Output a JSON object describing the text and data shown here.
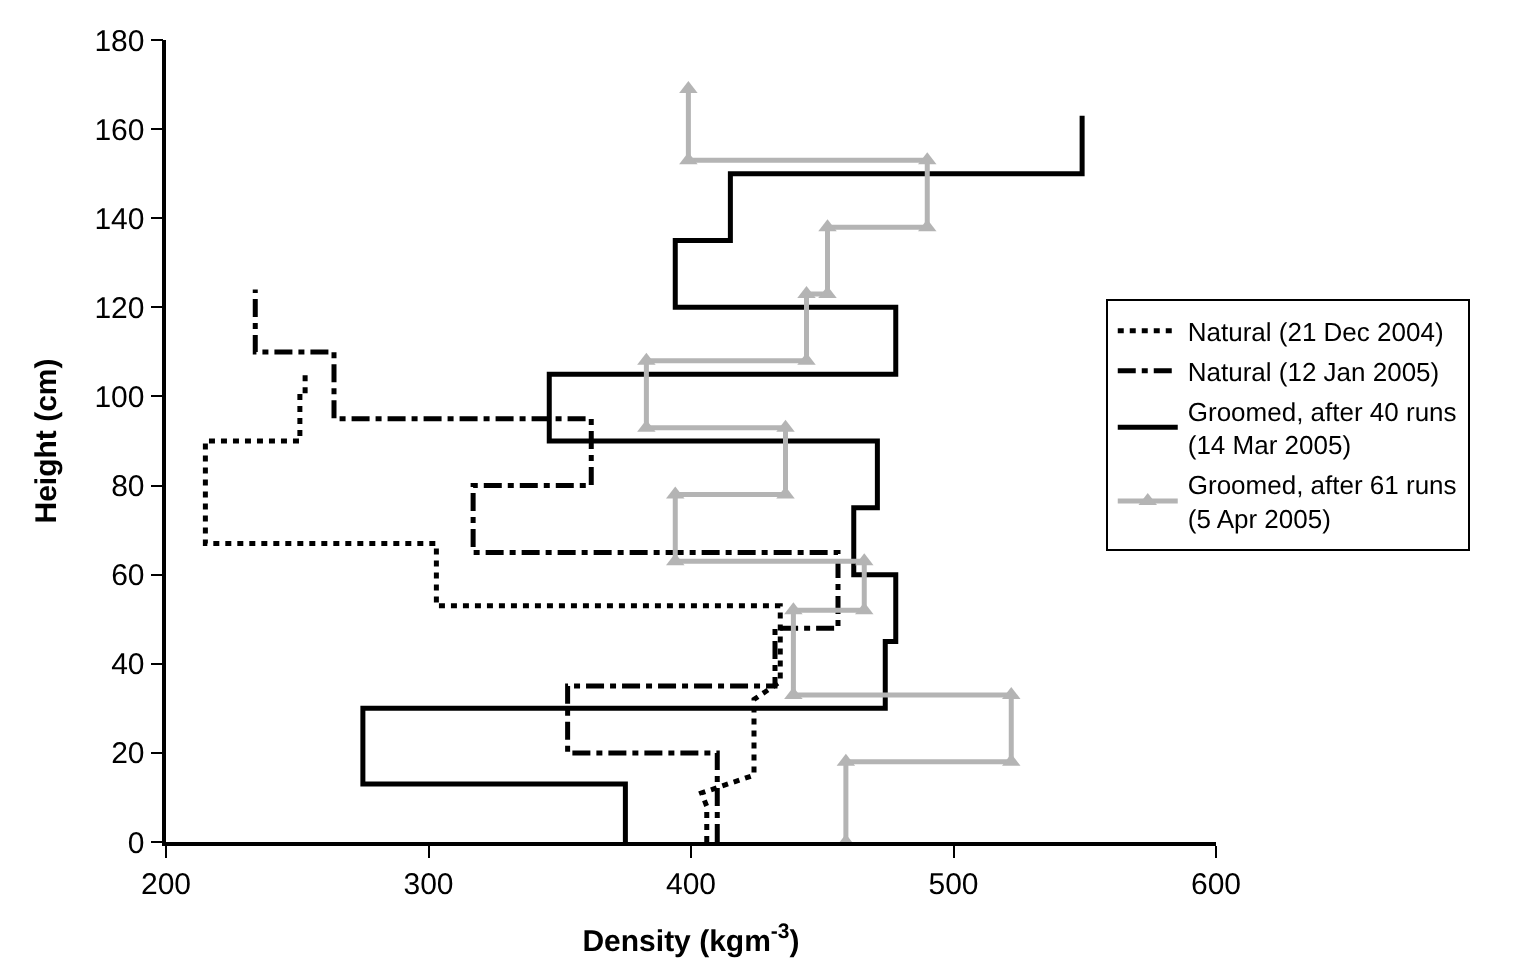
{
  "chart_data": {
    "type": "line",
    "xlabel": "Density (kgm$^{-3}$)",
    "ylabel": "Height (cm)",
    "xlim": [
      200,
      600
    ],
    "xticks": [
      200,
      300,
      400,
      500,
      600
    ],
    "ylim": [
      0,
      180
    ],
    "yticks": [
      0,
      20,
      40,
      60,
      80,
      100,
      120,
      140,
      160,
      180
    ],
    "legend": "right",
    "series": [
      {
        "name": "Natural (21 Dec 2004)",
        "color": "#000000",
        "line_style": "dotted",
        "marker": "none",
        "x": [
          406,
          406,
          404,
          424,
          424,
          434,
          434,
          303,
          303,
          215,
          215,
          251,
          251,
          253,
          253
        ],
        "values": [
          0,
          8,
          11,
          15,
          32,
          36,
          53,
          53,
          67,
          67,
          90,
          90,
          100,
          100,
          105
        ]
      },
      {
        "name": "Natural (12 Jan 2005)",
        "color": "#000000",
        "line_style": "dashdot",
        "marker": "none",
        "x": [
          410,
          410,
          353,
          353,
          432,
          432,
          456,
          456,
          317,
          317,
          362,
          362,
          264,
          264,
          234,
          234
        ],
        "values": [
          0,
          20,
          20,
          35,
          35,
          48,
          48,
          65,
          65,
          80,
          80,
          95,
          95,
          110,
          110,
          124
        ]
      },
      {
        "name": "Groomed, after 40 runs (14 Mar 2005)",
        "color": "#000000",
        "line_style": "solid",
        "marker": "none",
        "x": [
          375,
          375,
          275,
          275,
          474,
          474,
          478,
          478,
          462,
          462,
          471,
          471,
          346,
          346,
          478,
          478,
          394,
          394,
          415,
          415,
          549,
          549
        ],
        "values": [
          0,
          13,
          13,
          30,
          30,
          45,
          45,
          60,
          60,
          75,
          75,
          90,
          90,
          105,
          105,
          120,
          120,
          135,
          135,
          150,
          150,
          163
        ]
      },
      {
        "name": "Groomed, after 61 runs (5 Apr 2005)",
        "color": "#b4b4b4",
        "line_style": "solid",
        "marker": "triangle",
        "x": [
          459,
          459,
          522,
          522,
          439,
          439,
          466,
          466,
          394,
          394,
          436,
          436,
          383,
          383,
          444,
          444,
          452,
          452,
          490,
          490,
          399,
          399
        ],
        "values": [
          0,
          18,
          18,
          33,
          33,
          52,
          52,
          63,
          63,
          78,
          78,
          93,
          93,
          108,
          108,
          123,
          123,
          138,
          138,
          153,
          153,
          169
        ]
      }
    ]
  }
}
